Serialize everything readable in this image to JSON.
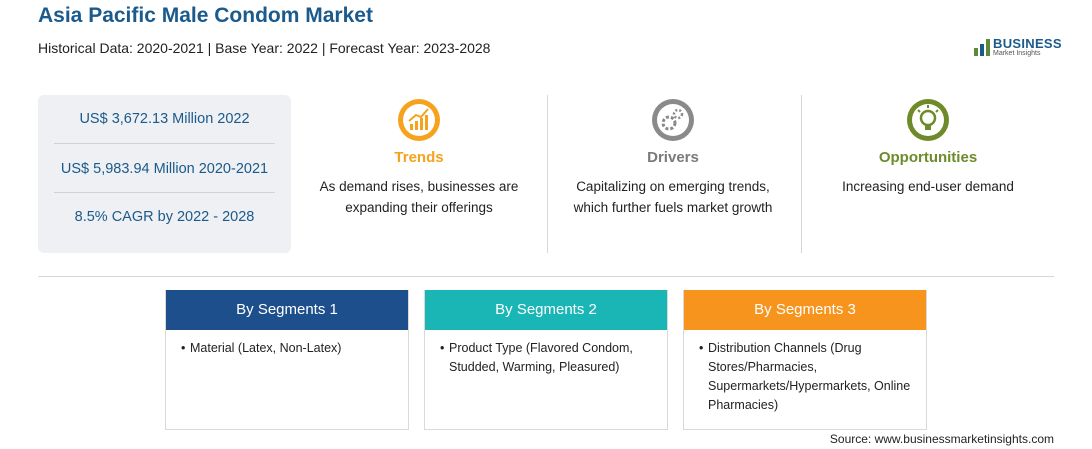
{
  "header": {
    "title": "Asia Pacific Male Condom Market",
    "subtitle": "Historical Data: 2020-2021 | Base Year: 2022 | Forecast Year: 2023-2028"
  },
  "logo": {
    "name": "BUSINESS",
    "tagline": "Market Insights"
  },
  "stats": [
    "US$ 3,672.13 Million 2022",
    "US$ 5,983.94 Million 2020-2021",
    "8.5% CAGR by 2022 - 2028"
  ],
  "insights": [
    {
      "label": "Trends",
      "text": "As demand rises, businesses are expanding their offerings"
    },
    {
      "label": "Drivers",
      "text": "Capitalizing on emerging trends, which further fuels market growth"
    },
    {
      "label": "Opportunities",
      "text": "Increasing end-user demand"
    }
  ],
  "segments": [
    {
      "title": "By Segments 1",
      "item": "Material (Latex, Non-Latex)"
    },
    {
      "title": "By Segments 2",
      "item": "Product Type (Flavored Condom, Studded, Warming, Pleasured)"
    },
    {
      "title": "By Segments 3",
      "item": "Distribution Channels (Drug Stores/Pharmacies, Supermarkets/Hypermarkets, Online Pharmacies)"
    }
  ],
  "source": "Source: www.businessmarketinsights.com"
}
